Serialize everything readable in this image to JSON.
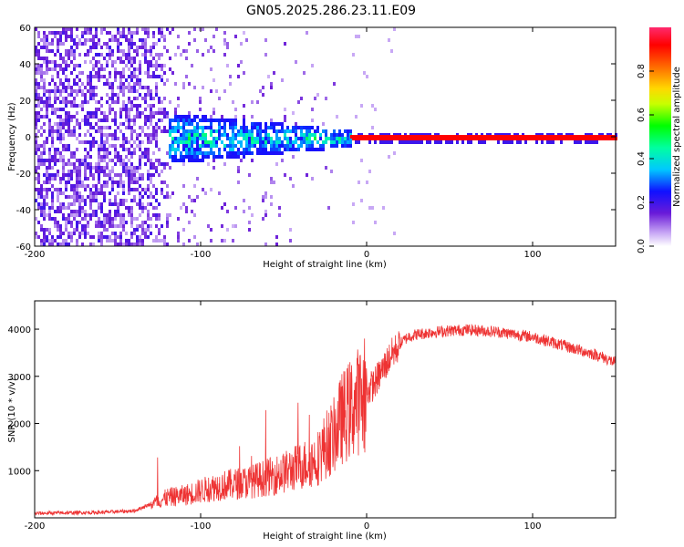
{
  "figure_title": "GN05.2025.286.23.11.E09",
  "chart_data": [
    {
      "type": "heatmap",
      "title": "GN05.2025.286.23.11.E09",
      "xlabel": "Height of straight line (km)",
      "ylabel": "Frequency (Hz)",
      "xlim": [
        -200,
        150
      ],
      "ylim": [
        -60,
        60
      ],
      "xticks": [
        -200,
        -100,
        0,
        100
      ],
      "yticks": [
        -60,
        -40,
        -20,
        0,
        20,
        40,
        60
      ],
      "colorbar": {
        "label": "Normalized spectral amplitude",
        "range": [
          0,
          1
        ],
        "ticks": [
          "0.0",
          "0.2",
          "0.4",
          "0.6",
          "0.8"
        ],
        "colormap": [
          "#ffffff",
          "#8a2be2",
          "#0000ff",
          "#00ffff",
          "#00ff00",
          "#ffff00",
          "#ff8c00",
          "#ff0000",
          "#ff1493"
        ]
      },
      "description_regions": [
        {
          "x_range": [
            -200,
            -120
          ],
          "freq_range": [
            -60,
            60
          ],
          "amplitude": [
            0.05,
            0.25
          ]
        },
        {
          "x_range": [
            -120,
            -10
          ],
          "freq_range": [
            -12,
            12
          ],
          "amplitude": [
            0.2,
            0.5
          ]
        },
        {
          "x_range": [
            -10,
            150
          ],
          "freq_range": [
            -1,
            1
          ],
          "amplitude": [
            0.9,
            1.0
          ]
        }
      ]
    },
    {
      "type": "line",
      "xlabel": "Height of straight line (km)",
      "ylabel": "SNR (10 * v/v)",
      "xlim": [
        -200,
        150
      ],
      "ylim": [
        0,
        4600
      ],
      "xticks": [
        -200,
        -100,
        0,
        100
      ],
      "yticks": [
        1000,
        2000,
        3000,
        4000
      ],
      "color": "#ee3333",
      "series": [
        {
          "name": "SNR",
          "x": [
            -200,
            -180,
            -160,
            -140,
            -130,
            -120,
            -110,
            -100,
            -90,
            -80,
            -70,
            -60,
            -50,
            -40,
            -30,
            -25,
            -20,
            -15,
            -10,
            -5,
            0,
            5,
            10,
            15,
            20,
            25,
            30,
            40,
            50,
            60,
            70,
            80,
            90,
            100,
            110,
            120,
            130,
            140,
            150
          ],
          "y": [
            100,
            110,
            120,
            150,
            300,
            450,
            500,
            600,
            700,
            750,
            800,
            900,
            1000,
            1150,
            1300,
            1600,
            1800,
            2200,
            2400,
            2600,
            2700,
            2900,
            3200,
            3500,
            3700,
            3850,
            3900,
            3950,
            3980,
            4000,
            3980,
            3950,
            3900,
            3850,
            3750,
            3650,
            3550,
            3450,
            3300
          ]
        }
      ]
    }
  ]
}
